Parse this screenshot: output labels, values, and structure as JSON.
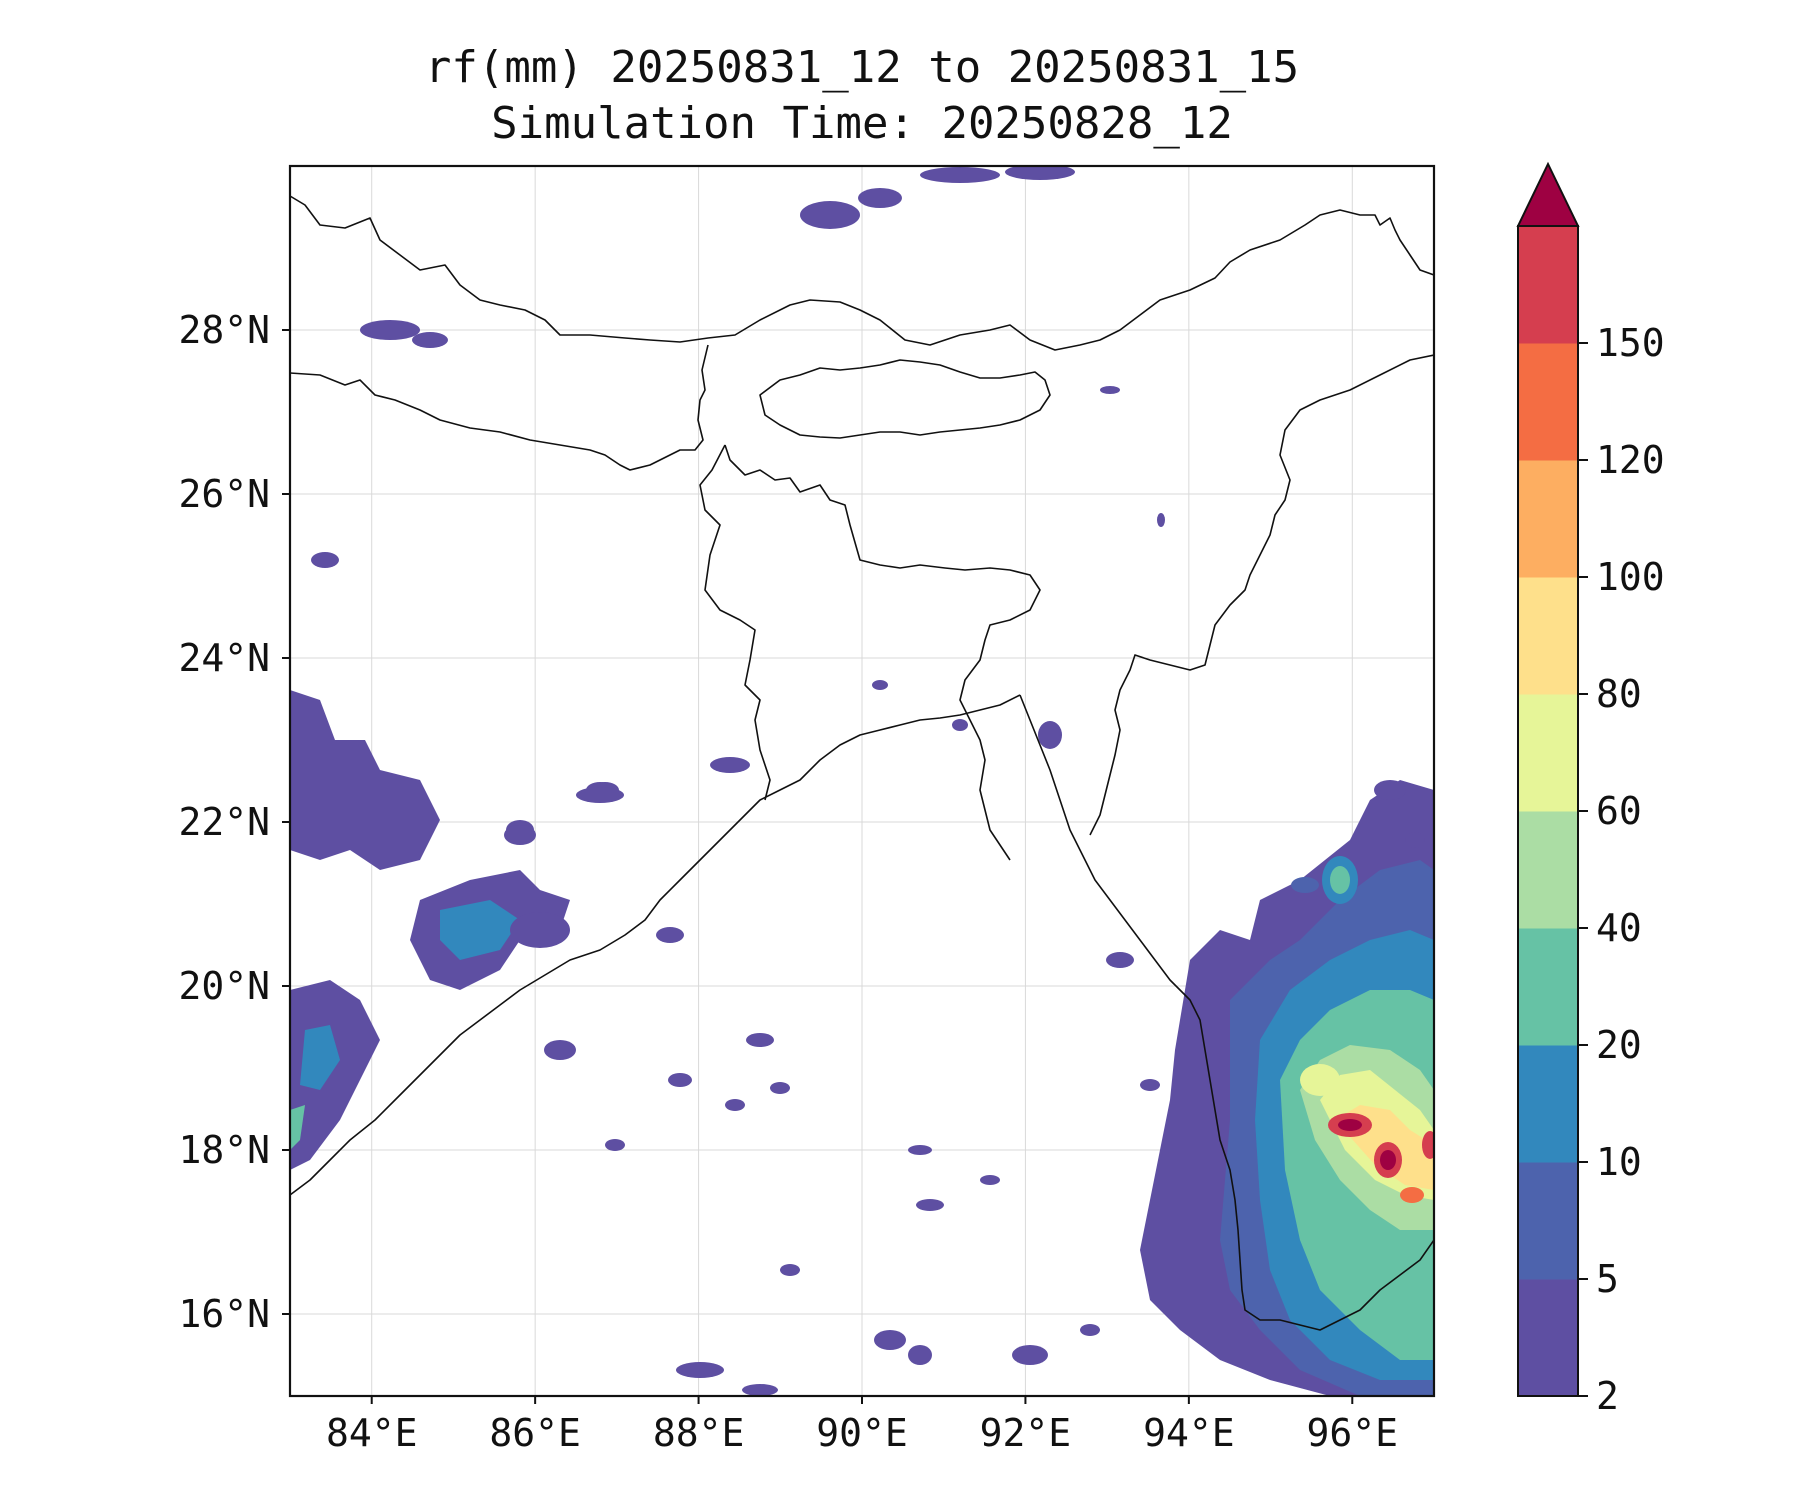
{
  "title": {
    "line1": "rf(mm) 20250831_12 to 20250831_15",
    "line2": "Simulation Time: 20250828_12"
  },
  "map": {
    "lon_range": [
      83,
      97
    ],
    "lat_range": [
      15,
      30
    ],
    "lon_ticks": [
      {
        "value": 84,
        "label": "84°E"
      },
      {
        "value": 86,
        "label": "86°E"
      },
      {
        "value": 88,
        "label": "88°E"
      },
      {
        "value": 90,
        "label": "90°E"
      },
      {
        "value": 92,
        "label": "92°E"
      },
      {
        "value": 94,
        "label": "94°E"
      },
      {
        "value": 96,
        "label": "96°E"
      }
    ],
    "lat_ticks": [
      {
        "value": 16,
        "label": "16°N"
      },
      {
        "value": 18,
        "label": "18°N"
      },
      {
        "value": 20,
        "label": "20°N"
      },
      {
        "value": 22,
        "label": "22°N"
      },
      {
        "value": 24,
        "label": "24°N"
      },
      {
        "value": 26,
        "label": "26°N"
      },
      {
        "value": 28,
        "label": "28°N"
      }
    ],
    "gridlines": true
  },
  "colorbar": {
    "levels": [
      "2",
      "5",
      "10",
      "20",
      "40",
      "60",
      "80",
      "100",
      "120",
      "150"
    ],
    "colors": [
      "#5e4fa2",
      "#4d63ad",
      "#3288bd",
      "#66c2a5",
      "#abdda4",
      "#e6f598",
      "#fee08b",
      "#fdae61",
      "#f46d43",
      "#d53e4f"
    ],
    "extend_color": "#9e0142",
    "extend": "max"
  },
  "legend_colors": {
    "c2": "#5e4fa2",
    "c5": "#4d63ad",
    "c10": "#3288bd",
    "c20": "#66c2a5",
    "c40": "#abdda4",
    "c60": "#e6f598",
    "c80": "#fee08b",
    "c100": "#fdae61",
    "c120": "#f46d43",
    "c150": "#d53e4f",
    "cmax": "#9e0142"
  }
}
